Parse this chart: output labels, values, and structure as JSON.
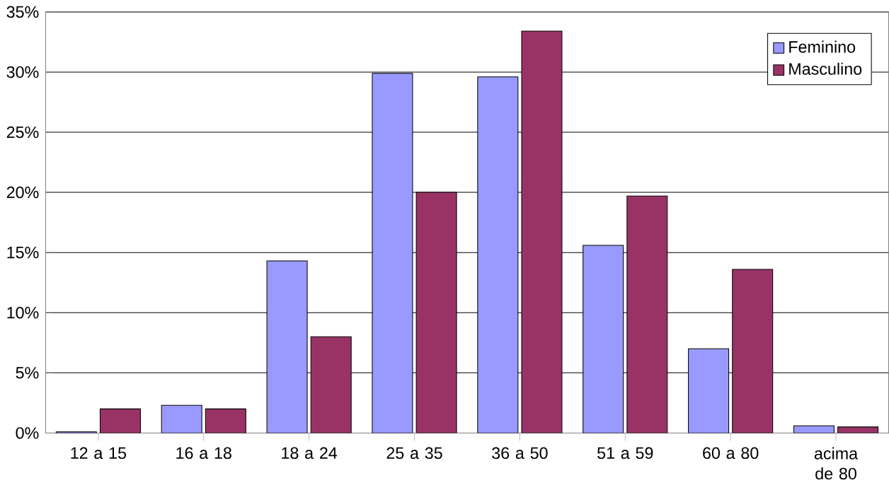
{
  "chart_data": {
    "type": "bar",
    "categories": [
      "12 a 15",
      "16 a 18",
      "18 a 24",
      "25 a 35",
      "36 a 50",
      "51 a 59",
      "60 a 80",
      "acima de 80"
    ],
    "series": [
      {
        "name": "Feminino",
        "color": "#9999ff",
        "values": [
          0.1,
          2.3,
          14.3,
          29.9,
          29.6,
          15.6,
          7.0,
          0.6
        ]
      },
      {
        "name": "Masculino",
        "color": "#993366",
        "values": [
          2.0,
          2.0,
          8.0,
          20.0,
          33.4,
          19.7,
          13.6,
          0.5
        ]
      }
    ],
    "ylim": [
      0,
      35
    ],
    "yticks": [
      {
        "value": 0,
        "label": "0%"
      },
      {
        "value": 5,
        "label": "5%"
      },
      {
        "value": 10,
        "label": "10%"
      },
      {
        "value": 15,
        "label": "15%"
      },
      {
        "value": 20,
        "label": "20%"
      },
      {
        "value": 25,
        "label": "25%"
      },
      {
        "value": 30,
        "label": "30%"
      },
      {
        "value": 35,
        "label": "35%"
      }
    ],
    "grid": "y",
    "legend": "top right"
  }
}
